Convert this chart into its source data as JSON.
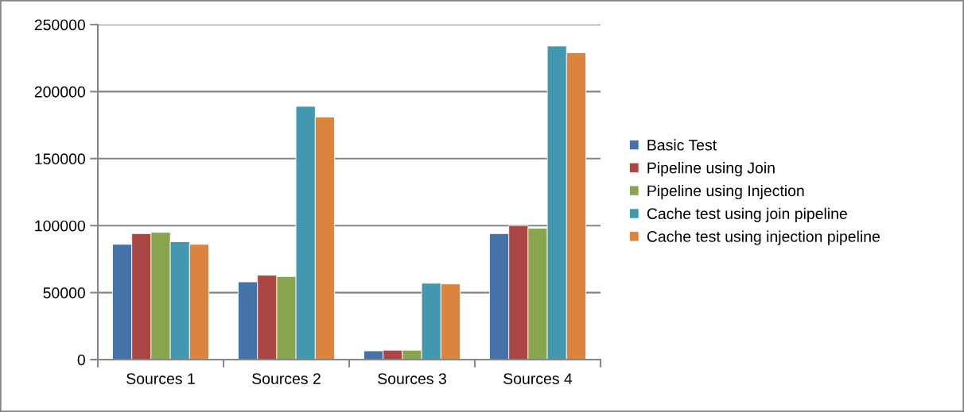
{
  "chart_data": {
    "type": "bar",
    "categories": [
      "Sources 1",
      "Sources 2",
      "Sources 3",
      "Sources 4"
    ],
    "series": [
      {
        "name": "Basic Test",
        "color": "#4572a7",
        "values": [
          86000,
          58000,
          6500,
          94000
        ]
      },
      {
        "name": "Pipeline using Join",
        "color": "#aa4643",
        "values": [
          94000,
          63000,
          7000,
          100000
        ]
      },
      {
        "name": "Pipeline using Injection",
        "color": "#89a54e",
        "values": [
          95000,
          62000,
          7000,
          98000
        ]
      },
      {
        "name": "Cache test using join pipeline",
        "color": "#4198af",
        "values": [
          88000,
          189000,
          57000,
          234000
        ]
      },
      {
        "name": "Cache test using injection pipeline",
        "color": "#db843d",
        "values": [
          86000,
          181000,
          56500,
          229000
        ]
      }
    ],
    "ylim": [
      0,
      250000
    ],
    "yticks": [
      0,
      50000,
      100000,
      150000,
      200000,
      250000
    ],
    "grid": "y",
    "legend": "right"
  }
}
